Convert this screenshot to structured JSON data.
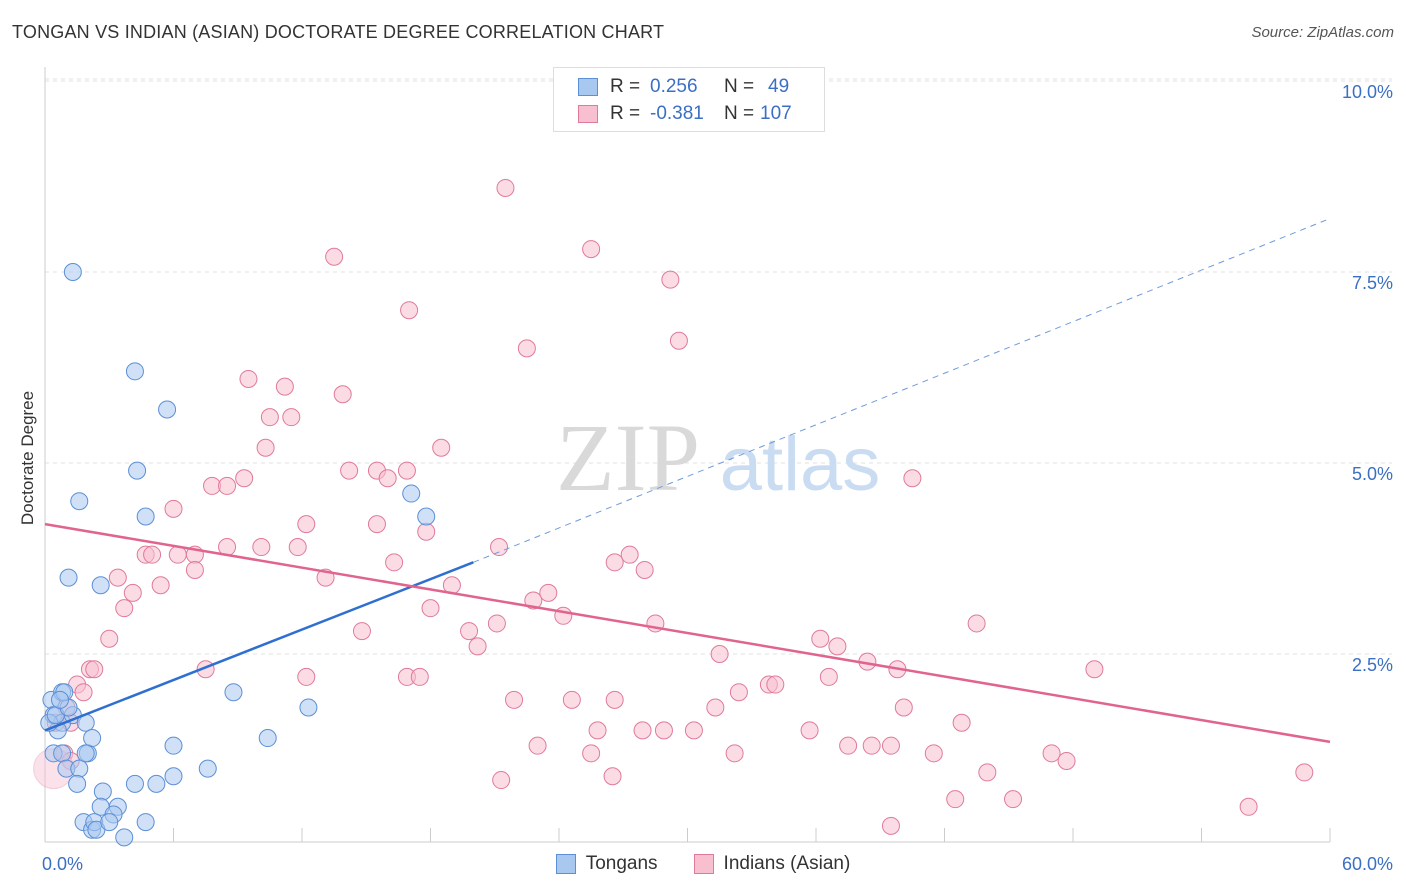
{
  "header": {
    "title": "TONGAN VS INDIAN (ASIAN) DOCTORATE DEGREE CORRELATION CHART",
    "source": "Source: ZipAtlas.com"
  },
  "legend": {
    "rows": [
      {
        "r_label": "R =",
        "r_value": "0.256",
        "n_label": "N =",
        "n_value": "49",
        "color": "#a9c8f0",
        "border": "#5b8fd6"
      },
      {
        "r_label": "R =",
        "r_value": "-0.381",
        "n_label": "N =",
        "n_value": "107",
        "color": "#f7bfd0",
        "border": "#e07a9a"
      }
    ],
    "bottom": [
      {
        "label": "Tongans",
        "color": "#a9c8f0",
        "border": "#5b8fd6"
      },
      {
        "label": "Indians (Asian)",
        "color": "#f7bfd0",
        "border": "#e07a9a"
      }
    ]
  },
  "watermark": {
    "zip": "ZIP",
    "atlas": "atlas"
  },
  "chart_data": {
    "type": "scatter",
    "title": "TONGAN VS INDIAN (ASIAN) DOCTORATE DEGREE CORRELATION CHART",
    "xlabel": "",
    "ylabel": "Doctorate Degree",
    "xlim": [
      0,
      60
    ],
    "ylim": [
      0,
      10
    ],
    "x_tick_labels": [
      "0.0%",
      "60.0%"
    ],
    "y_ticks": [
      2.5,
      5.0,
      7.5,
      10.0
    ],
    "y_tick_labels": [
      "2.5%",
      "5.0%",
      "7.5%",
      "10.0%"
    ],
    "grid": true,
    "series": [
      {
        "name": "Tongans",
        "color": "#5b8fd6",
        "fill": "#a9c8f0",
        "regression": {
          "x0": 0,
          "y0": 1.5,
          "x1": 20,
          "y1": 3.7,
          "dashed_to_x": 60,
          "dashed_to_y": 8.2,
          "line_color": "#2f6fd0"
        },
        "points": [
          [
            1.3,
            7.5
          ],
          [
            4.2,
            6.2
          ],
          [
            5.7,
            5.7
          ],
          [
            4.3,
            4.9
          ],
          [
            1.6,
            4.5
          ],
          [
            4.7,
            4.3
          ],
          [
            17.1,
            4.6
          ],
          [
            17.8,
            4.3
          ],
          [
            1.1,
            3.5
          ],
          [
            2.6,
            3.4
          ],
          [
            0.3,
            1.9
          ],
          [
            0.8,
            2.0
          ],
          [
            0.4,
            1.7
          ],
          [
            0.8,
            1.6
          ],
          [
            1.3,
            1.7
          ],
          [
            1.9,
            1.6
          ],
          [
            0.6,
            1.5
          ],
          [
            0.4,
            1.2
          ],
          [
            0.8,
            1.2
          ],
          [
            2.0,
            1.2
          ],
          [
            1.0,
            1.0
          ],
          [
            1.6,
            1.0
          ],
          [
            1.5,
            0.8
          ],
          [
            2.7,
            0.7
          ],
          [
            3.4,
            0.5
          ],
          [
            2.6,
            0.5
          ],
          [
            3.2,
            0.4
          ],
          [
            1.8,
            0.3
          ],
          [
            2.2,
            0.2
          ],
          [
            2.3,
            0.3
          ],
          [
            2.4,
            0.2
          ],
          [
            3.0,
            0.3
          ],
          [
            3.7,
            0.1
          ],
          [
            4.7,
            0.3
          ],
          [
            4.2,
            0.8
          ],
          [
            5.2,
            0.8
          ],
          [
            6.0,
            0.9
          ],
          [
            7.6,
            1.0
          ],
          [
            6.0,
            1.3
          ],
          [
            8.8,
            2.0
          ],
          [
            10.4,
            1.4
          ],
          [
            12.3,
            1.8
          ],
          [
            0.2,
            1.6
          ],
          [
            0.5,
            1.7
          ],
          [
            1.1,
            1.8
          ],
          [
            0.9,
            2.0
          ],
          [
            2.2,
            1.4
          ],
          [
            0.7,
            1.9
          ],
          [
            1.9,
            1.2
          ]
        ]
      },
      {
        "name": "Indians (Asian)",
        "color": "#e07a9a",
        "fill": "#f7bfd0",
        "regression": {
          "x0": 0,
          "y0": 4.2,
          "x1": 60,
          "y1": 1.35,
          "line_color": "#e0648e"
        },
        "points": [
          [
            21.5,
            8.6
          ],
          [
            25.5,
            7.8
          ],
          [
            13.5,
            7.7
          ],
          [
            29.2,
            7.4
          ],
          [
            17.0,
            7.0
          ],
          [
            22.5,
            6.5
          ],
          [
            29.6,
            6.6
          ],
          [
            9.5,
            6.1
          ],
          [
            11.2,
            6.0
          ],
          [
            13.9,
            5.9
          ],
          [
            10.5,
            5.6
          ],
          [
            11.5,
            5.6
          ],
          [
            10.3,
            5.2
          ],
          [
            18.5,
            5.2
          ],
          [
            14.2,
            4.9
          ],
          [
            15.5,
            4.9
          ],
          [
            16.0,
            4.8
          ],
          [
            16.9,
            4.9
          ],
          [
            7.8,
            4.7
          ],
          [
            8.5,
            4.7
          ],
          [
            9.3,
            4.8
          ],
          [
            6.0,
            4.4
          ],
          [
            12.2,
            4.2
          ],
          [
            15.5,
            4.2
          ],
          [
            17.8,
            4.1
          ],
          [
            40.5,
            4.8
          ],
          [
            8.5,
            3.9
          ],
          [
            10.1,
            3.9
          ],
          [
            11.8,
            3.9
          ],
          [
            6.2,
            3.8
          ],
          [
            7.0,
            3.8
          ],
          [
            4.7,
            3.8
          ],
          [
            5.0,
            3.8
          ],
          [
            21.2,
            3.9
          ],
          [
            16.3,
            3.7
          ],
          [
            26.6,
            3.7
          ],
          [
            27.3,
            3.8
          ],
          [
            7.0,
            3.6
          ],
          [
            28.0,
            3.6
          ],
          [
            13.1,
            3.5
          ],
          [
            3.4,
            3.5
          ],
          [
            5.4,
            3.4
          ],
          [
            19.0,
            3.4
          ],
          [
            23.5,
            3.3
          ],
          [
            4.1,
            3.3
          ],
          [
            3.7,
            3.1
          ],
          [
            18.0,
            3.1
          ],
          [
            22.8,
            3.2
          ],
          [
            24.2,
            3.0
          ],
          [
            21.1,
            2.9
          ],
          [
            19.8,
            2.8
          ],
          [
            28.5,
            2.9
          ],
          [
            14.8,
            2.8
          ],
          [
            20.2,
            2.6
          ],
          [
            3.0,
            2.7
          ],
          [
            36.2,
            2.7
          ],
          [
            37.0,
            2.6
          ],
          [
            43.5,
            2.9
          ],
          [
            2.1,
            2.3
          ],
          [
            2.3,
            2.3
          ],
          [
            7.5,
            2.3
          ],
          [
            12.2,
            2.2
          ],
          [
            16.9,
            2.2
          ],
          [
            17.5,
            2.2
          ],
          [
            31.5,
            2.5
          ],
          [
            33.8,
            2.1
          ],
          [
            34.1,
            2.1
          ],
          [
            36.6,
            2.2
          ],
          [
            38.4,
            2.4
          ],
          [
            39.8,
            2.3
          ],
          [
            49.0,
            2.3
          ],
          [
            1.5,
            2.1
          ],
          [
            1.8,
            2.0
          ],
          [
            21.9,
            1.9
          ],
          [
            24.6,
            1.9
          ],
          [
            26.6,
            1.9
          ],
          [
            31.3,
            1.8
          ],
          [
            32.4,
            2.0
          ],
          [
            40.1,
            1.8
          ],
          [
            1.0,
            1.8
          ],
          [
            1.2,
            1.6
          ],
          [
            0.5,
            1.6
          ],
          [
            25.8,
            1.5
          ],
          [
            27.9,
            1.5
          ],
          [
            28.9,
            1.5
          ],
          [
            30.3,
            1.5
          ],
          [
            35.7,
            1.5
          ],
          [
            42.8,
            1.6
          ],
          [
            23.0,
            1.3
          ],
          [
            25.5,
            1.2
          ],
          [
            32.2,
            1.2
          ],
          [
            37.5,
            1.3
          ],
          [
            38.6,
            1.3
          ],
          [
            39.5,
            1.3
          ],
          [
            41.5,
            1.2
          ],
          [
            47.0,
            1.2
          ],
          [
            47.7,
            1.1
          ],
          [
            0.9,
            1.2
          ],
          [
            1.2,
            1.1
          ],
          [
            26.5,
            0.9
          ],
          [
            44.0,
            0.95
          ],
          [
            58.8,
            0.95
          ],
          [
            21.3,
            0.85
          ],
          [
            42.5,
            0.6
          ],
          [
            45.2,
            0.6
          ],
          [
            56.2,
            0.5
          ],
          [
            39.5,
            0.25
          ]
        ]
      }
    ]
  }
}
